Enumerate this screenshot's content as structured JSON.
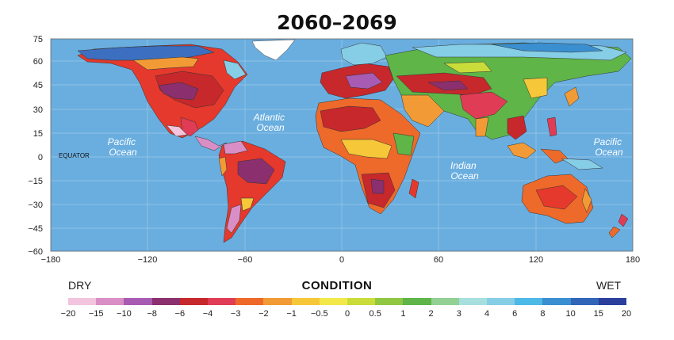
{
  "title": "2060–2069",
  "map": {
    "x_ticks": [
      "−180",
      "−120",
      "−60",
      "0",
      "60",
      "120",
      "180"
    ],
    "y_ticks": [
      "75",
      "60",
      "45",
      "30",
      "15",
      "0",
      "−15",
      "−30",
      "−45",
      "−60"
    ],
    "ocean_labels": [
      {
        "id": "pacific-west",
        "line1": "Pacific",
        "line2": "Ocean"
      },
      {
        "id": "atlantic",
        "line1": "Atlantic",
        "line2": "Ocean"
      },
      {
        "id": "indian",
        "line1": "Indian",
        "line2": "Ocean"
      },
      {
        "id": "pacific-east",
        "line1": "Pacific",
        "line2": "Ocean"
      }
    ],
    "equator_label": "EQUATOR",
    "ocean_color": "#6aaedf"
  },
  "legend": {
    "dry_label": "DRY",
    "wet_label": "WET",
    "title": "CONDITION",
    "ticks": [
      "−20",
      "−15",
      "−10",
      "−8",
      "−6",
      "−4",
      "−3",
      "−2",
      "−1",
      "−0.5",
      "0",
      "0.5",
      "1",
      "2",
      "3",
      "4",
      "6",
      "8",
      "10",
      "15",
      "20"
    ],
    "colors": [
      "#f2c4dd",
      "#d98fc6",
      "#a85bb2",
      "#8b2f6e",
      "#c7282c",
      "#e03c55",
      "#ee6a2a",
      "#f29b36",
      "#f6c739",
      "#f3e84a",
      "#c9dc3a",
      "#8fc742",
      "#5fb548",
      "#92d094",
      "#a7dede",
      "#86cde6",
      "#4db9e6",
      "#3a8fd0",
      "#3065b8",
      "#2a3f9c"
    ]
  }
}
